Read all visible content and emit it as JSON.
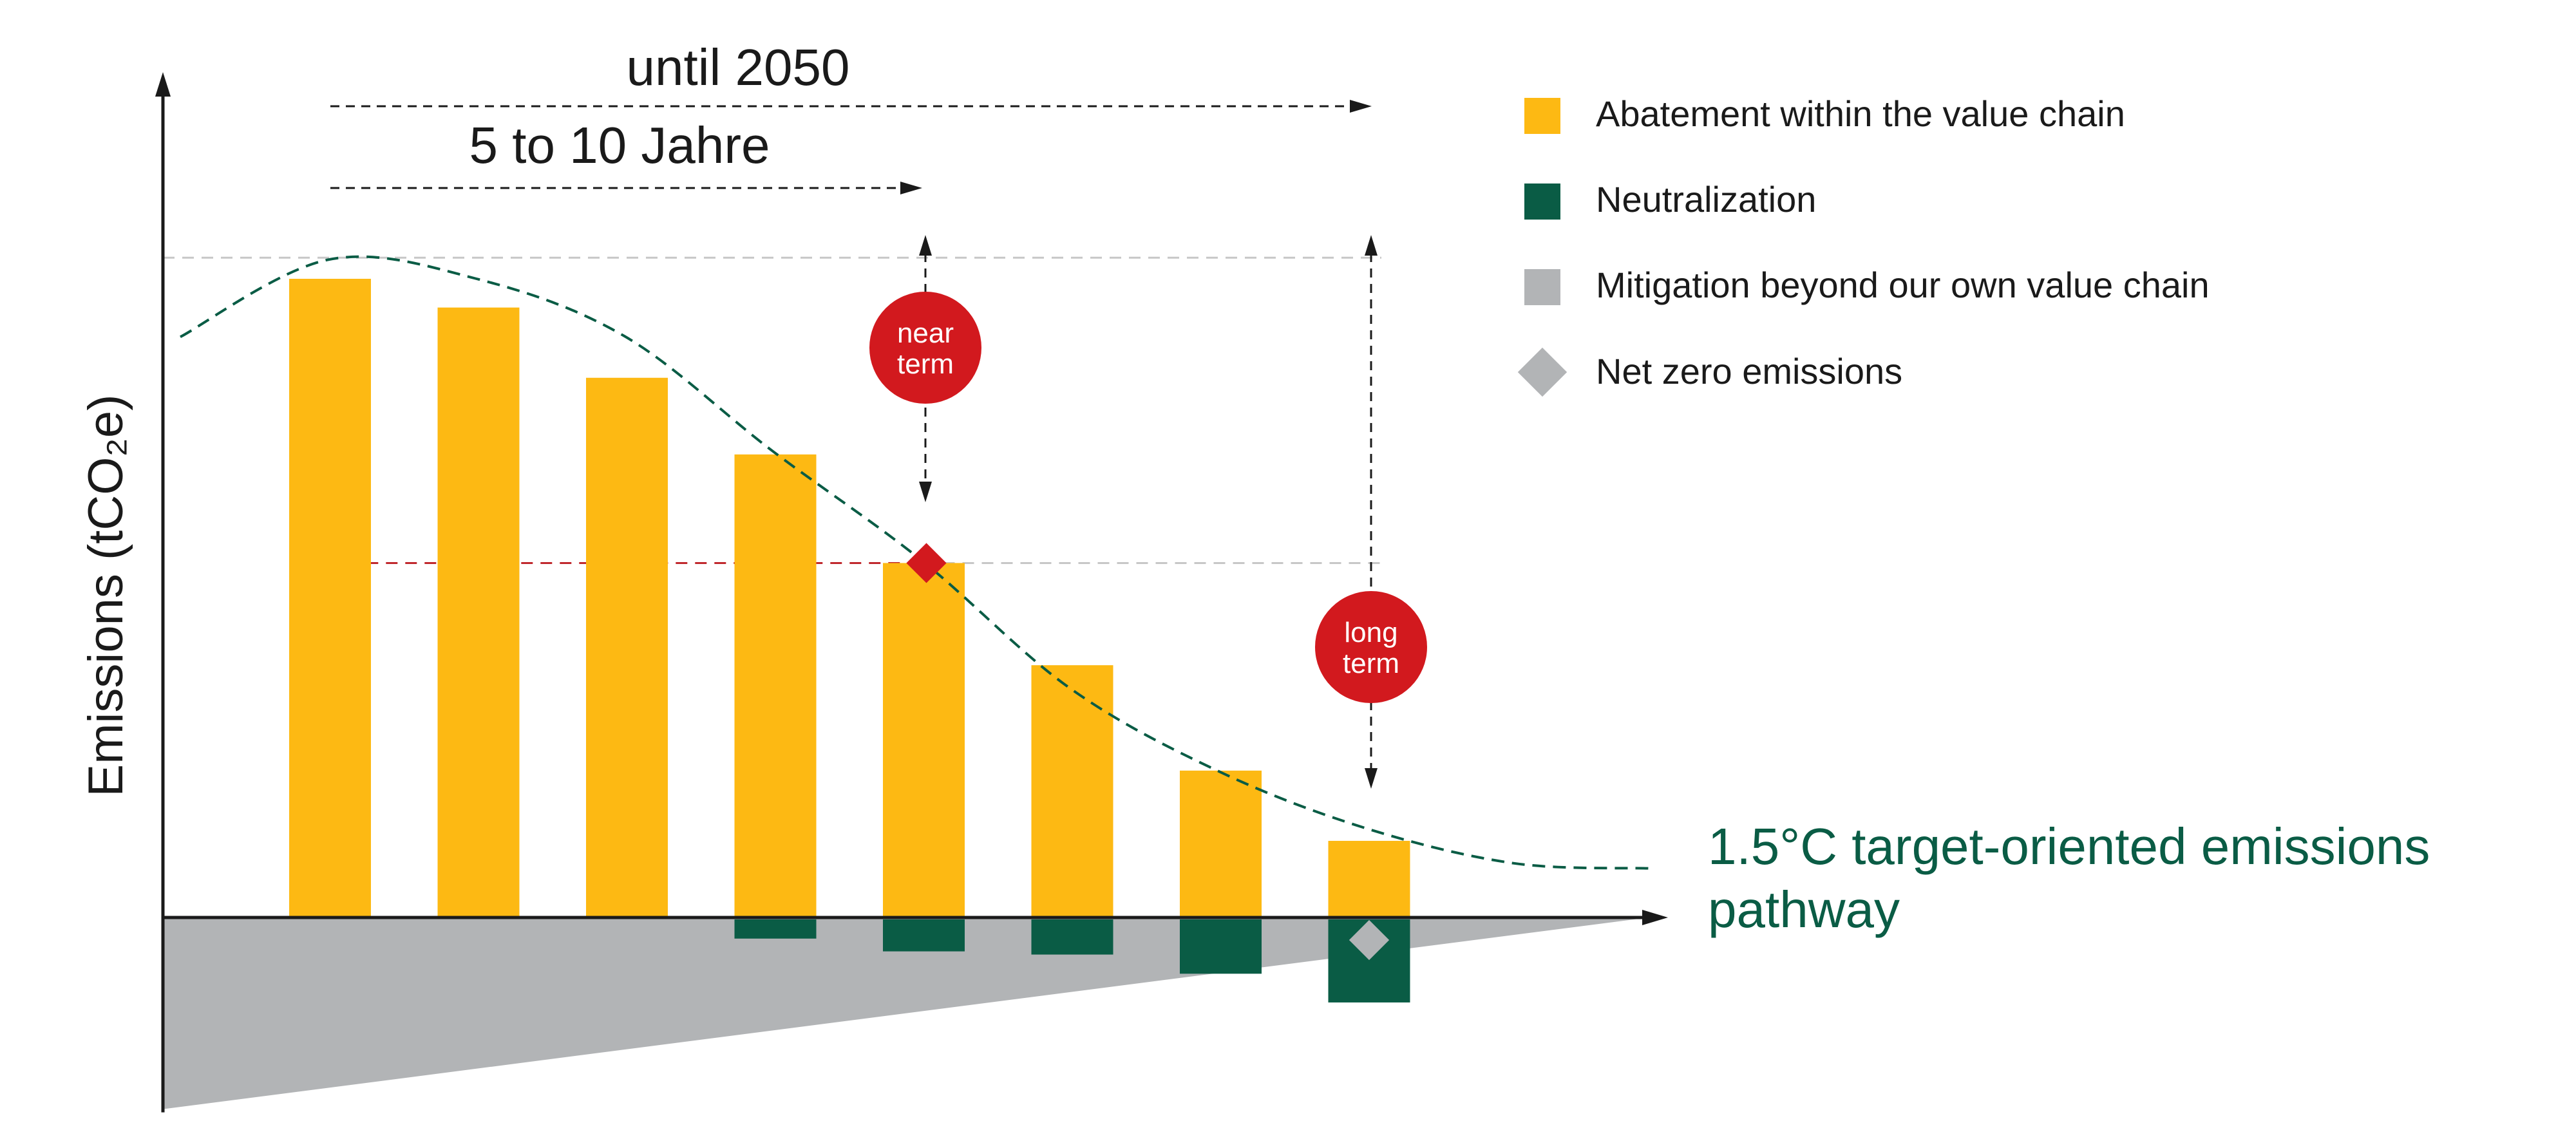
{
  "colors": {
    "abatement": "#FDB913",
    "neutralization": "#0A5C45",
    "mitigation": "#B2B4B6",
    "net_zero_marker": "#B2B4B6",
    "pathway": "#0A5C45",
    "badge": "#D2191E",
    "target_marker": "#D2191E",
    "axis": "#1a1a1a"
  },
  "labels": {
    "horizon_long": "until 2050",
    "horizon_short": "5 to 10 Jahre",
    "badge_near_line1": "near",
    "badge_near_line2": "term",
    "badge_long_line1": "long",
    "badge_long_line2": "term",
    "pathway_line1": "1.5°C target-oriented emissions",
    "pathway_line2": "pathway"
  },
  "legend": [
    {
      "label": "Abatement within the value chain",
      "shape": "square",
      "color_key": "abatement"
    },
    {
      "label": "Neutralization",
      "shape": "square",
      "color_key": "neutralization"
    },
    {
      "label": "Mitigation beyond our own value chain",
      "shape": "square",
      "color_key": "mitigation"
    },
    {
      "label": "Net zero emissions",
      "shape": "diamond",
      "color_key": "net_zero_marker"
    }
  ],
  "chart_data": {
    "type": "bar",
    "ylabel": "Emissions (tCO₂e)",
    "xlabel": "",
    "x_ticks": "none",
    "y_ticks": "none",
    "ylim": [
      -3.0,
      10.3
    ],
    "grid": false,
    "legend_position": "top-right",
    "series": [
      {
        "name": "Abatement within the value chain",
        "values": [
          10.0,
          9.55,
          8.45,
          7.25,
          5.55,
          3.95,
          2.3,
          1.2
        ]
      },
      {
        "name": "Neutralization",
        "values": [
          0,
          0,
          0,
          -0.3,
          -0.5,
          -0.55,
          -0.85,
          -1.3
        ]
      }
    ],
    "mitigation_wedge": {
      "start": 0,
      "end": -3.0
    },
    "pathway_curve": [
      10.3,
      10.0,
      9.1,
      7.3,
      5.6,
      3.6,
      2.3,
      1.4,
      0.85
    ],
    "near_term_target_value": 5.55,
    "net_zero_bar_index": 7
  }
}
